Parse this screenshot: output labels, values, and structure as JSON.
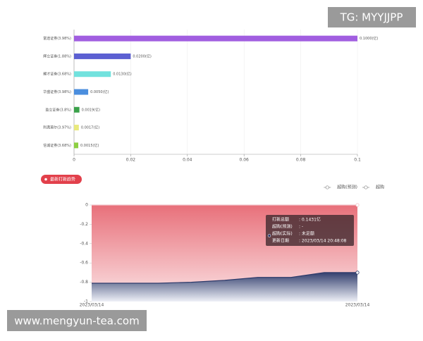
{
  "watermarks": [
    "TG: MYYJJPP",
    "www.mengyun-tea.com"
  ],
  "badge": "最新打新趋势",
  "chart_data": [
    {
      "type": "bar",
      "orientation": "horizontal",
      "categories": [
        "富途证券(3.98%)",
        "辉立证券(1.88%)",
        "耀才证券(3.68%)",
        "华盛证券(3.98%)",
        "盈立证券(3.8%)",
        "利弗莫尔(3.97%)",
        "信诚证券(3.68%)"
      ],
      "values": [
        0.1,
        0.02,
        0.013,
        0.005,
        0.0019,
        0.0017,
        0.0015
      ],
      "value_labels": [
        "0.1000(亿)",
        "0.0200(亿)",
        "0.0130(亿)",
        "0.0050(亿)",
        "0.0019(亿)",
        "0.0017(亿)",
        "0.0015(亿)"
      ],
      "colors": [
        "#a15ee0",
        "#5c60d2",
        "#72e2de",
        "#4b8ede",
        "#3aa14a",
        "#e9e97c",
        "#8dcf42"
      ],
      "xlim": [
        0,
        0.1
      ],
      "xticks": [
        0,
        0.02,
        0.04,
        0.06,
        0.08,
        0.1
      ],
      "grid": true
    },
    {
      "type": "line",
      "categories": [
        "2023/03/14",
        null,
        null,
        null,
        null,
        null,
        null,
        null,
        "2023/03/14"
      ],
      "series": [
        {
          "name": "超购(预测)",
          "color": "#f2c4c9",
          "values": [
            0,
            0,
            0,
            0,
            0,
            0,
            0,
            0,
            0
          ]
        },
        {
          "name": "超购",
          "color": "#2d3a6a",
          "values": [
            -0.81,
            -0.81,
            -0.81,
            -0.8,
            -0.78,
            -0.75,
            -0.75,
            -0.7,
            -0.7
          ]
        }
      ],
      "ylim": [
        -1,
        0
      ],
      "yticks": [
        0,
        -0.2,
        -0.4,
        -0.6,
        -0.8,
        -1
      ],
      "tooltip": [
        [
          "打新总额",
          ": 0.1431亿"
        ],
        [
          "超购(预测)",
          ": -"
        ],
        [
          "超购(实际)",
          ": 未足额"
        ],
        [
          "更新日期",
          ": 2023/03/14 20:48:08"
        ]
      ]
    }
  ]
}
